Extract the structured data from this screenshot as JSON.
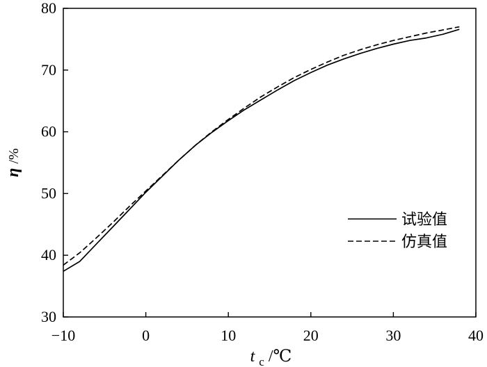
{
  "chart_data": {
    "type": "line",
    "title": "",
    "xlabel": {
      "symbol": "t",
      "subscript": "c",
      "unit": "/℃"
    },
    "ylabel": {
      "symbol": "η",
      "unit": "/%"
    },
    "xlim": [
      -10,
      40
    ],
    "ylim": [
      30,
      80
    ],
    "xticks": [
      -10,
      0,
      10,
      20,
      30,
      40
    ],
    "xtick_labels": [
      "−10",
      "0",
      "10",
      "20",
      "30",
      "40"
    ],
    "yticks": [
      30,
      40,
      50,
      60,
      70,
      80
    ],
    "ytick_labels": [
      "30",
      "40",
      "50",
      "60",
      "70",
      "80"
    ],
    "grid": false,
    "legend_position": "right-center",
    "series": [
      {
        "name": "试验值",
        "style": "solid",
        "color": "#000000",
        "x": [
          -10,
          -8,
          -6,
          -4,
          -2,
          0,
          2,
          4,
          6,
          8,
          10,
          12,
          14,
          16,
          18,
          20,
          22,
          24,
          26,
          28,
          30,
          32,
          34,
          36,
          38
        ],
        "y": [
          37.4,
          39.0,
          41.8,
          44.6,
          47.4,
          50.2,
          52.8,
          55.4,
          57.8,
          59.9,
          61.8,
          63.6,
          65.2,
          66.8,
          68.3,
          69.6,
          70.8,
          71.8,
          72.7,
          73.5,
          74.2,
          74.8,
          75.2,
          75.8,
          76.6
        ]
      },
      {
        "name": "仿真值",
        "style": "dashed",
        "color": "#000000",
        "x": [
          -10,
          -8,
          -6,
          -4,
          -2,
          0,
          2,
          4,
          6,
          8,
          10,
          12,
          14,
          16,
          18,
          20,
          22,
          24,
          26,
          28,
          30,
          32,
          34,
          36,
          38
        ],
        "y": [
          38.4,
          40.4,
          42.8,
          45.3,
          47.9,
          50.4,
          52.9,
          55.4,
          57.8,
          60.0,
          62.0,
          63.9,
          65.7,
          67.3,
          68.8,
          70.1,
          71.3,
          72.4,
          73.3,
          74.1,
          74.8,
          75.4,
          76.0,
          76.5,
          77.0
        ]
      }
    ]
  }
}
